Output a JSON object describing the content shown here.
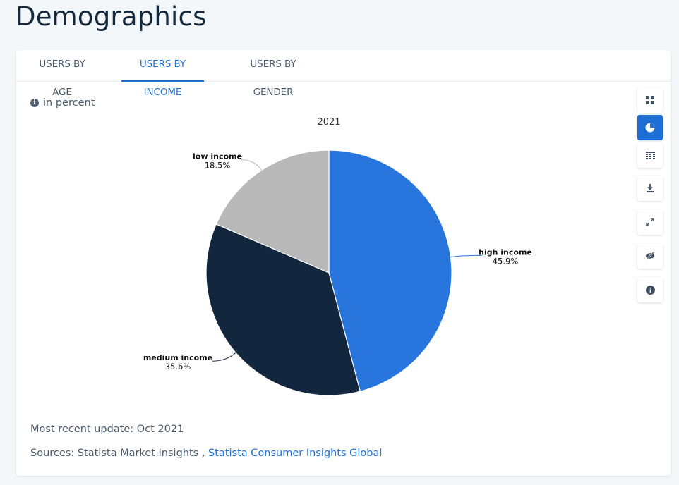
{
  "page": {
    "title": "Demographics"
  },
  "tabs": [
    {
      "label": "USERS BY AGE",
      "active": false
    },
    {
      "label": "USERS BY INCOME",
      "active": true
    },
    {
      "label": "USERS BY GENDER",
      "active": false
    }
  ],
  "unit_note": "in percent",
  "toolbar": [
    {
      "icon": "grid-icon",
      "active": false
    },
    {
      "icon": "pie-chart-icon",
      "active": true
    },
    {
      "icon": "table-icon",
      "active": false
    },
    {
      "icon": "download-icon",
      "active": false
    },
    {
      "icon": "expand-icon",
      "active": false
    },
    {
      "icon": "hide-icon",
      "active": false
    },
    {
      "icon": "info-icon",
      "active": false
    }
  ],
  "footer": {
    "update": "Most recent update: Oct 2021",
    "sources_prefix": "Sources: Statista Market Insights ,",
    "sources_link": "Statista Consumer Insights Global"
  },
  "chart_data": {
    "type": "pie",
    "title": "2021",
    "categories": [
      "high income",
      "medium income",
      "low income"
    ],
    "values": [
      45.9,
      35.6,
      18.5
    ],
    "value_labels": [
      "45.9%",
      "35.6%",
      "18.5%"
    ],
    "colors": [
      "#2876dd",
      "#12273e",
      "#b9b9b9"
    ]
  }
}
